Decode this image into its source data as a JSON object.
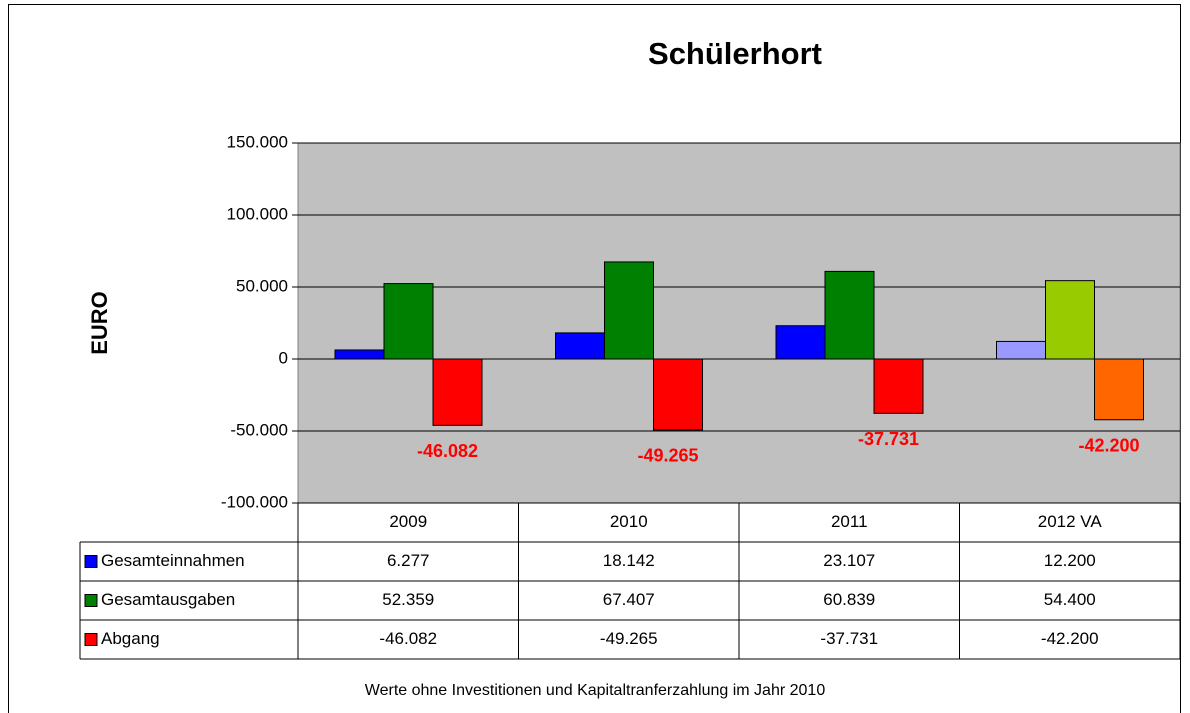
{
  "chart_data": {
    "type": "bar",
    "title": "Schülerhort",
    "y_label": "EURO",
    "footnote": "Werte ohne Investitionen und Kapitaltranferzahlung im Jahr 2010",
    "categories": [
      "2009",
      "2010",
      "2011",
      "2012 VA"
    ],
    "series": [
      {
        "name": "Gesamteinnahmen",
        "color": "#0000ff",
        "colors": [
          "#0000ff",
          "#0000ff",
          "#0000ff",
          "#9999ff"
        ],
        "values": [
          6277,
          18142,
          23107,
          12200
        ],
        "value_labels": [
          "6.277",
          "18.142",
          "23.107",
          "12.200"
        ]
      },
      {
        "name": "Gesamtausgaben",
        "color": "#008000",
        "colors": [
          "#008000",
          "#008000",
          "#008000",
          "#99cc00"
        ],
        "values": [
          52359,
          67407,
          60839,
          54400
        ],
        "value_labels": [
          "52.359",
          "67.407",
          "60.839",
          "54.400"
        ]
      },
      {
        "name": "Abgang",
        "color": "#ff0000",
        "colors": [
          "#ff0000",
          "#ff0000",
          "#ff0000",
          "#ff6600"
        ],
        "values": [
          -46082,
          -49265,
          -37731,
          -42200
        ],
        "value_labels": [
          "-46.082",
          "-49.265",
          "-37.731",
          "-42.200"
        ],
        "show_data_labels": true
      }
    ],
    "ylim": [
      -100000,
      150000
    ],
    "yticks": [
      {
        "value": -100000,
        "label": "-100.000"
      },
      {
        "value": -50000,
        "label": "-50.000"
      },
      0,
      {
        "value": 50000,
        "label": "50.000"
      },
      {
        "value": 100000,
        "label": "100.000"
      },
      {
        "value": 150000,
        "label": "150.000"
      }
    ],
    "grid": true,
    "plot_background": "#c0c0c0"
  }
}
